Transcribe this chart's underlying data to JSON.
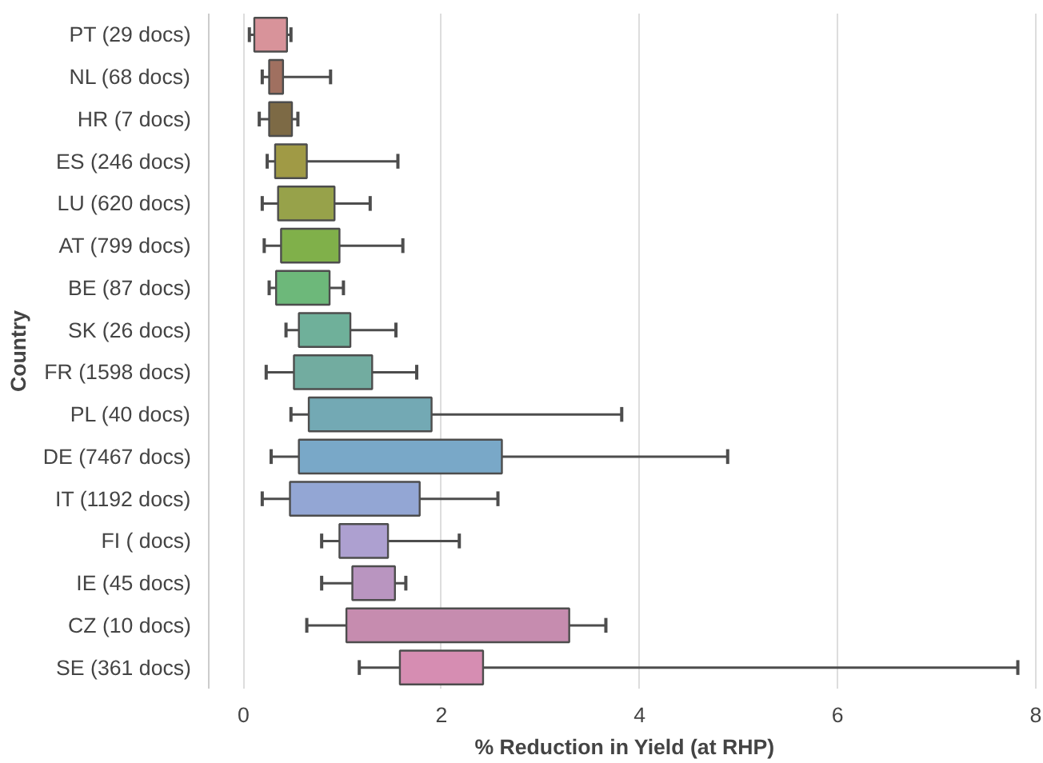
{
  "chart_data": {
    "type": "box",
    "orientation": "horizontal",
    "xlabel": "% Reduction in Yield (at RHP)",
    "ylabel": "Country",
    "categories": [
      "PT (29 docs)",
      "NL (68 docs)",
      "HR (7 docs)",
      "ES (246 docs)",
      "LU (620 docs)",
      "AT (799 docs)",
      "BE (87 docs)",
      "SK (26 docs)",
      "FR (1598 docs)",
      "PL (40 docs)",
      "DE (7467 docs)",
      "IT (1192 docs)",
      "FI ( docs)",
      "IE (45 docs)",
      "CZ (10 docs)",
      "SE (361 docs)"
    ],
    "colors": [
      "#d8939a",
      "#a07060",
      "#7d6a45",
      "#a09a45",
      "#97a24a",
      "#80b04a",
      "#6db87a",
      "#6fb09a",
      "#72aca0",
      "#73a9b4",
      "#79a8c8",
      "#93a6d4",
      "#ada0d0",
      "#b995c0",
      "#c68caf",
      "#d68db2"
    ],
    "boxes": [
      {
        "low": 0.06,
        "q1": 0.11,
        "q3": 0.44,
        "high": 0.48
      },
      {
        "low": 0.19,
        "q1": 0.26,
        "q3": 0.4,
        "high": 0.88
      },
      {
        "low": 0.16,
        "q1": 0.26,
        "q3": 0.49,
        "high": 0.55
      },
      {
        "low": 0.24,
        "q1": 0.32,
        "q3": 0.64,
        "high": 1.56
      },
      {
        "low": 0.19,
        "q1": 0.35,
        "q3": 0.92,
        "high": 1.28
      },
      {
        "low": 0.21,
        "q1": 0.38,
        "q3": 0.97,
        "high": 1.61
      },
      {
        "low": 0.26,
        "q1": 0.33,
        "q3": 0.87,
        "high": 1.01
      },
      {
        "low": 0.43,
        "q1": 0.56,
        "q3": 1.08,
        "high": 1.54
      },
      {
        "low": 0.23,
        "q1": 0.51,
        "q3": 1.3,
        "high": 1.75
      },
      {
        "low": 0.48,
        "q1": 0.66,
        "q3": 1.9,
        "high": 3.82
      },
      {
        "low": 0.28,
        "q1": 0.56,
        "q3": 2.61,
        "high": 4.89
      },
      {
        "low": 0.19,
        "q1": 0.47,
        "q3": 1.78,
        "high": 2.57
      },
      {
        "low": 0.79,
        "q1": 0.97,
        "q3": 1.46,
        "high": 2.18
      },
      {
        "low": 0.79,
        "q1": 1.1,
        "q3": 1.53,
        "high": 1.64
      },
      {
        "low": 0.64,
        "q1": 1.04,
        "q3": 3.29,
        "high": 3.66
      },
      {
        "low": 1.17,
        "q1": 1.58,
        "q3": 2.42,
        "high": 7.82
      }
    ],
    "xlim": [
      -0.35,
      8.05
    ],
    "xticks": [
      0,
      2,
      4,
      6,
      8
    ],
    "grid": "x"
  }
}
